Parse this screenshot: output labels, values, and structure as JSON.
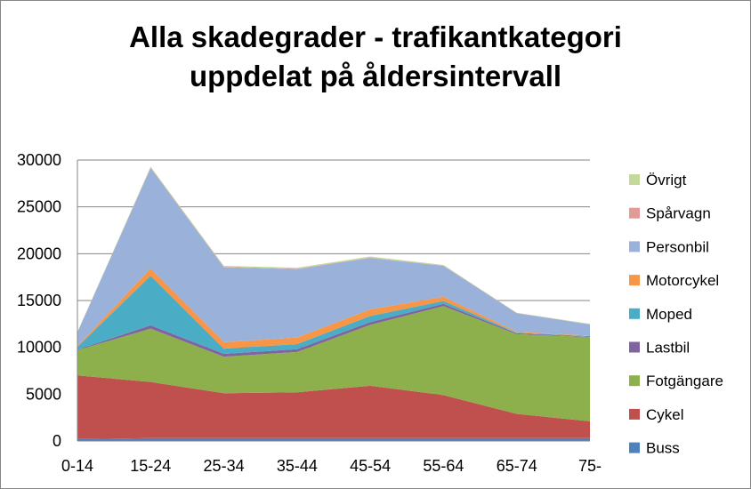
{
  "chart_data": {
    "type": "area",
    "stacked": true,
    "title_line1": "Alla skadegrader - trafikantkategori",
    "title_line2": "uppdelat på åldersintervall",
    "categories": [
      "0-14",
      "15-24",
      "25-34",
      "35-44",
      "45-54",
      "55-64",
      "65-74",
      "75-"
    ],
    "ylim": [
      0,
      30000
    ],
    "yticks": [
      "0",
      "5000",
      "10000",
      "15000",
      "20000",
      "25000",
      "30000"
    ],
    "grid": true,
    "legend_position": "right",
    "series": [
      {
        "name": "Buss",
        "color": "#4F81BD",
        "values": [
          200,
          300,
          300,
          300,
          300,
          300,
          300,
          300
        ]
      },
      {
        "name": "Cykel",
        "color": "#C0504D",
        "values": [
          6800,
          6000,
          4800,
          4900,
          5600,
          4600,
          2600,
          1800
        ]
      },
      {
        "name": "Fotgängare",
        "color": "#8DB04D",
        "values": [
          2700,
          5700,
          3900,
          4300,
          6500,
          9500,
          8500,
          9000
        ]
      },
      {
        "name": "Lastbil",
        "color": "#7F649F",
        "values": [
          50,
          350,
          300,
          300,
          300,
          250,
          100,
          50
        ]
      },
      {
        "name": "Moped",
        "color": "#4BACC6",
        "values": [
          300,
          5300,
          550,
          550,
          650,
          300,
          50,
          50
        ]
      },
      {
        "name": "Motorcykel",
        "color": "#F79646",
        "values": [
          50,
          800,
          700,
          700,
          700,
          450,
          100,
          50
        ]
      },
      {
        "name": "Personbil",
        "color": "#9AB1D9",
        "values": [
          1500,
          10700,
          8000,
          7300,
          5500,
          3300,
          2000,
          1200
        ]
      },
      {
        "name": "Spårvagn",
        "color": "#E09A98",
        "values": [
          20,
          50,
          50,
          40,
          40,
          30,
          20,
          10
        ]
      },
      {
        "name": "Övrigt",
        "color": "#C3D99A",
        "values": [
          30,
          100,
          100,
          110,
          110,
          70,
          30,
          40
        ]
      }
    ]
  }
}
